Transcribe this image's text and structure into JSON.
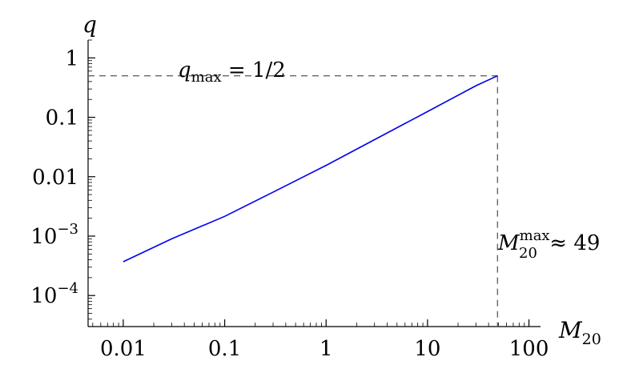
{
  "chart_data": {
    "type": "line",
    "title": "",
    "xlabel": "M",
    "xlabel_sub": "20",
    "ylabel": "q",
    "x_scale": "log",
    "y_scale": "log",
    "xlim": [
      0.0045,
      130
    ],
    "ylim": [
      3e-05,
      2
    ],
    "x_ticks": [
      {
        "value": 0.01,
        "label": "0.01"
      },
      {
        "value": 0.1,
        "label": "0.1"
      },
      {
        "value": 1,
        "label": "1"
      },
      {
        "value": 10,
        "label": "10"
      },
      {
        "value": 100,
        "label": "100"
      }
    ],
    "y_ticks": [
      {
        "value": 0.0001,
        "base": "10",
        "exp": "−4"
      },
      {
        "value": 0.001,
        "base": "10",
        "exp": "−3"
      },
      {
        "value": 0.01,
        "base": "0.01",
        "exp": ""
      },
      {
        "value": 0.1,
        "base": "0.1",
        "exp": ""
      },
      {
        "value": 1,
        "base": "1",
        "exp": ""
      }
    ],
    "grid": false,
    "series": [
      {
        "color": "#0000ee",
        "points": [
          {
            "x": 0.01,
            "y": 0.00037
          },
          {
            "x": 0.03,
            "y": 0.0009
          },
          {
            "x": 0.1,
            "y": 0.00215
          },
          {
            "x": 0.3,
            "y": 0.0055
          },
          {
            "x": 1,
            "y": 0.0155
          },
          {
            "x": 3,
            "y": 0.042
          },
          {
            "x": 10,
            "y": 0.125
          },
          {
            "x": 30,
            "y": 0.34
          },
          {
            "x": 49,
            "y": 0.5
          }
        ]
      }
    ],
    "annotations": {
      "qmax": {
        "var": "q",
        "sub": "max",
        "rest": " = 1/2",
        "y": 0.5
      },
      "mmax": {
        "var": "M",
        "sub": "20",
        "sup": "max",
        "rest": " ≈ 49",
        "x": 49
      }
    }
  }
}
